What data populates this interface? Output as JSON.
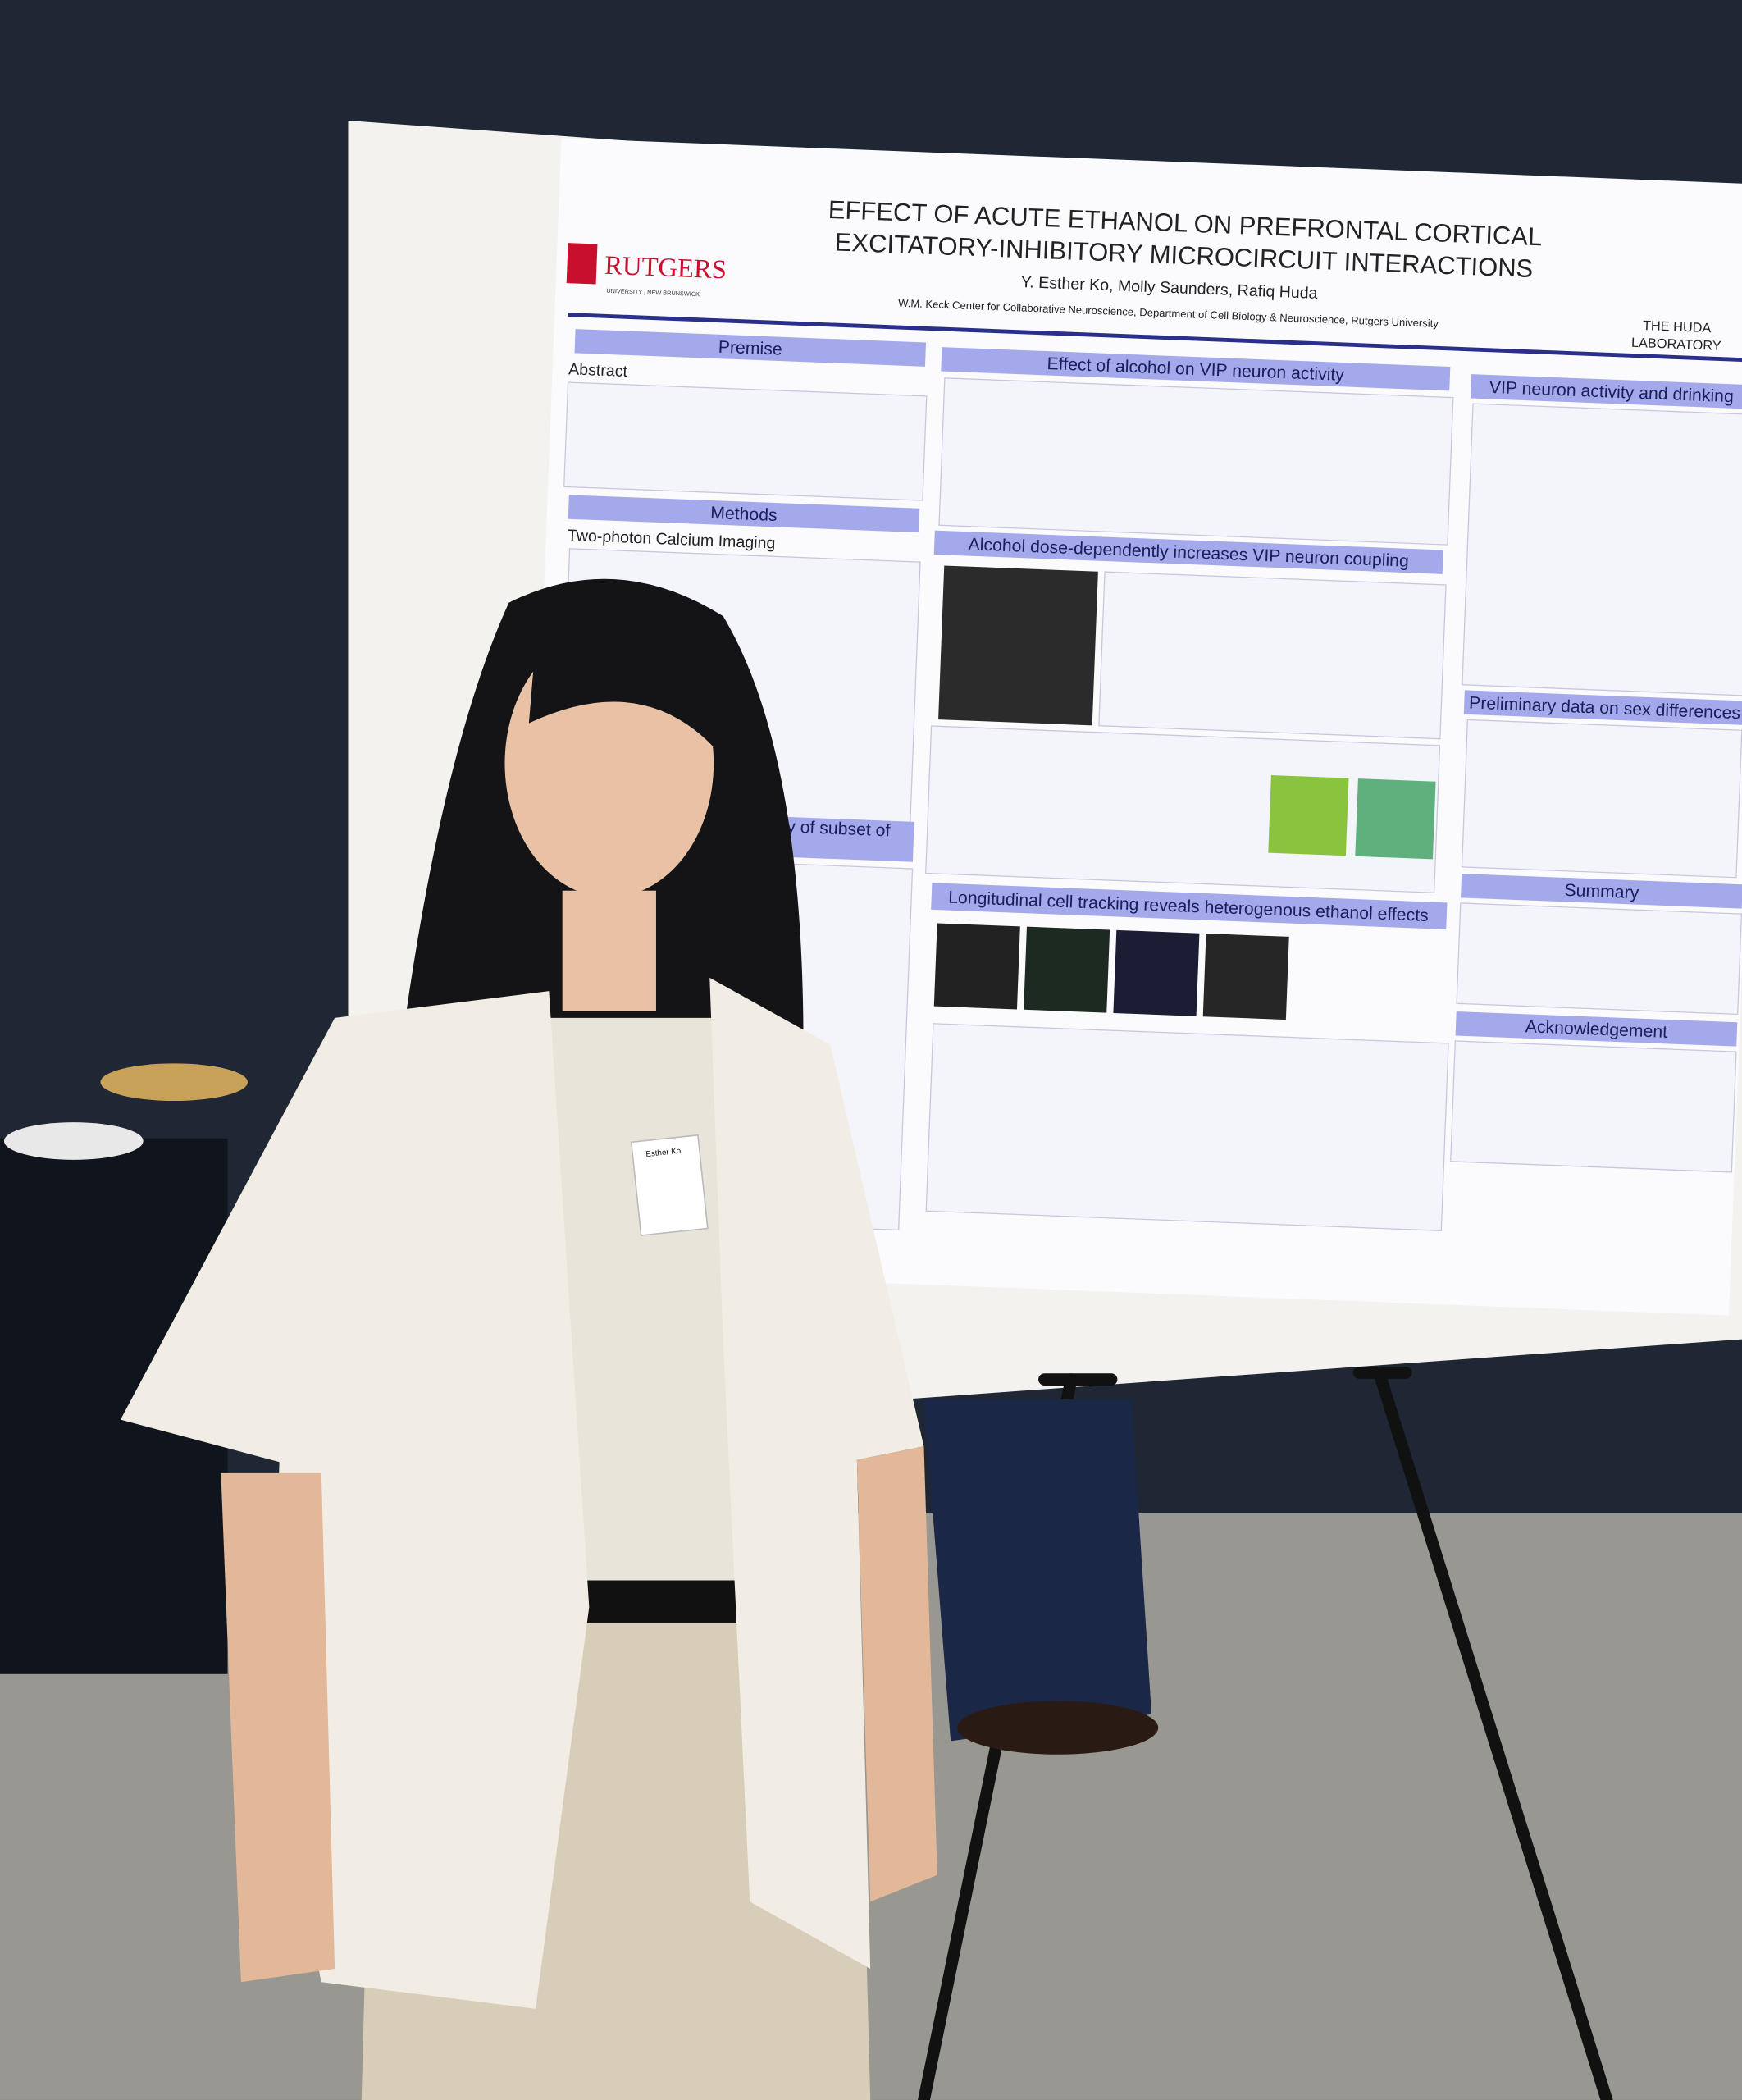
{
  "poster": {
    "logo": "RUTGERS",
    "logo_sub": "UNIVERSITY | NEW BRUNSWICK",
    "title_lines": [
      "EFFECT OF ACUTE ETHANOL ON PREFRONTAL CORTICAL",
      "EXCITATORY-INHIBITORY MICROCIRCUIT INTERACTIONS"
    ],
    "authors": "Y. Esther Ko, Molly Saunders, Rafiq Huda",
    "affiliation": "W.M. Keck Center for Collaborative Neuroscience, Department of Cell Biology & Neuroscience, Rutgers University",
    "lab_lines": [
      "THE HUDA",
      "LABORATORY"
    ],
    "premise": "Premise",
    "abstract": "Abstract",
    "methods": "Methods",
    "methods_sub": "Two-photon Calcium Imaging",
    "subset": "activity of subset of",
    "effect": "Effect of alcohol on VIP neuron activity",
    "coupling": "Alcohol dose-dependently increases VIP neuron coupling",
    "longitudinal": "Longitudinal cell tracking reveals heterogenous ethanol effects",
    "drinking": "VIP neuron activity and drinking",
    "sex": "Preliminary data on sex differences",
    "summary": "Summary",
    "acknowledgement": "Acknowledgement"
  },
  "name_tag": "Esther Ko"
}
